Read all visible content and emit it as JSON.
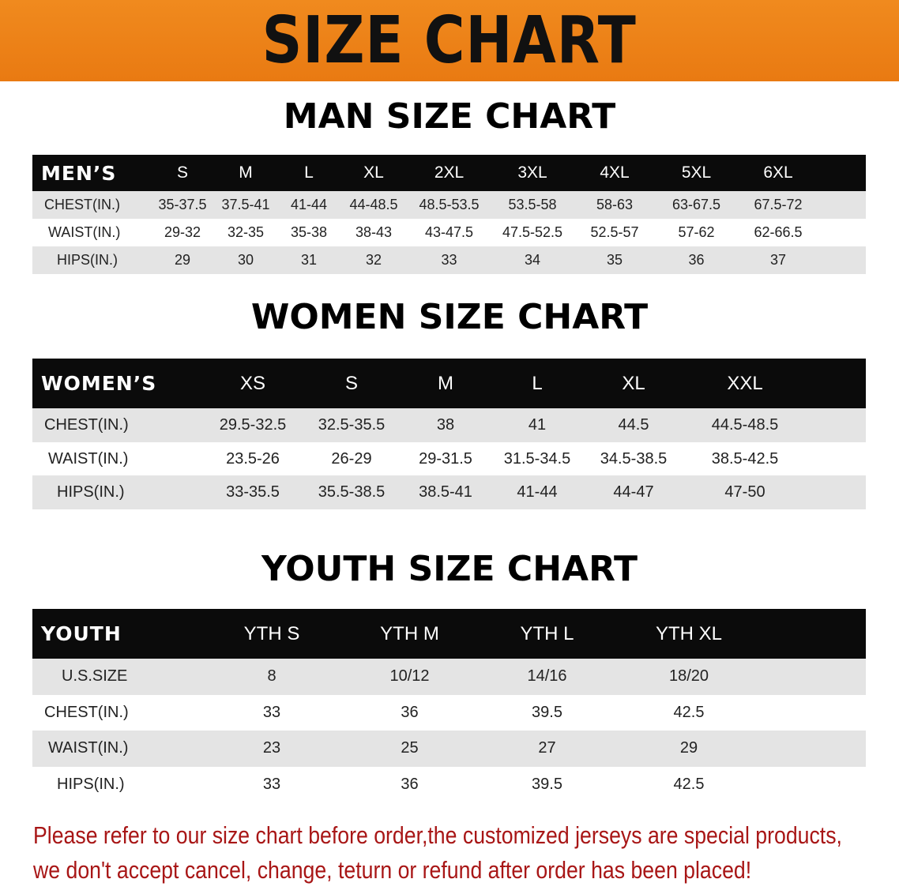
{
  "banner_title": "SIZE CHART",
  "colors": {
    "banner": "#f08a1e",
    "header_row": "#0b0b0b",
    "stripe": "#e4e4e4",
    "note": "#a81616"
  },
  "men": {
    "title": "MAN SIZE CHART",
    "header": [
      "MEN’S",
      "S",
      "M",
      "L",
      "XL",
      "2XL",
      "3XL",
      "4XL",
      "5XL",
      "6XL"
    ],
    "rows": [
      [
        "CHEST(IN.)",
        "35-37.5",
        "37.5-41",
        "41-44",
        "44-48.5",
        "48.5-53.5",
        "53.5-58",
        "58-63",
        "63-67.5",
        "67.5-72"
      ],
      [
        "WAIST(IN.)",
        "29-32",
        "32-35",
        "35-38",
        "38-43",
        "43-47.5",
        "47.5-52.5",
        "52.5-57",
        "57-62",
        "62-66.5"
      ],
      [
        "HIPS(IN.)",
        "29",
        "30",
        "31",
        "32",
        "33",
        "34",
        "35",
        "36",
        "37"
      ]
    ]
  },
  "women": {
    "title": "WOMEN SIZE CHART",
    "header": [
      "WOMEN’S",
      "XS",
      "S",
      "M",
      "L",
      "XL",
      "XXL"
    ],
    "rows": [
      [
        "CHEST(IN.)",
        "29.5-32.5",
        "32.5-35.5",
        "38",
        "41",
        "44.5",
        "44.5-48.5"
      ],
      [
        "WAIST(IN.)",
        "23.5-26",
        "26-29",
        "29-31.5",
        "31.5-34.5",
        "34.5-38.5",
        "38.5-42.5"
      ],
      [
        "HIPS(IN.)",
        "33-35.5",
        "35.5-38.5",
        "38.5-41",
        "41-44",
        "44-47",
        "47-50"
      ]
    ]
  },
  "youth": {
    "title": "YOUTH SIZE CHART",
    "header": [
      "YOUTH",
      "YTH S",
      "YTH M",
      "YTH L",
      "YTH XL"
    ],
    "rows": [
      [
        "U.S.SIZE",
        "8",
        "10/12",
        "14/16",
        "18/20"
      ],
      [
        "CHEST(IN.)",
        "33",
        "36",
        "39.5",
        "42.5"
      ],
      [
        "WAIST(IN.)",
        "23",
        "25",
        "27",
        "29"
      ],
      [
        "HIPS(IN.)",
        "33",
        "36",
        "39.5",
        "42.5"
      ]
    ]
  },
  "note": {
    "line1": "Please refer to our size chart before order,the customized jerseys are special products,",
    "line2": "we don't accept cancel, change, teturn or refund after order has been placed!"
  }
}
